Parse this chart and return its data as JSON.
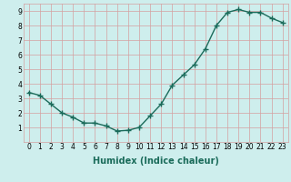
{
  "x": [
    0,
    1,
    2,
    3,
    4,
    5,
    6,
    7,
    8,
    9,
    10,
    11,
    12,
    13,
    14,
    15,
    16,
    17,
    18,
    19,
    20,
    21,
    22,
    23
  ],
  "y": [
    3.4,
    3.2,
    2.6,
    2.0,
    1.7,
    1.3,
    1.3,
    1.1,
    0.75,
    0.8,
    1.0,
    1.8,
    2.6,
    3.9,
    4.6,
    5.3,
    6.4,
    8.0,
    8.9,
    9.1,
    8.9,
    8.9,
    8.5,
    8.2
  ],
  "line_color": "#1a6b5a",
  "marker": "+",
  "marker_size": 4.0,
  "line_width": 1.0,
  "xlabel": "Humidex (Indice chaleur)",
  "ylabel": "",
  "xlim": [
    -0.5,
    23.5
  ],
  "ylim": [
    0,
    9.5
  ],
  "yticks": [
    1,
    2,
    3,
    4,
    5,
    6,
    7,
    8,
    9
  ],
  "xticks": [
    0,
    1,
    2,
    3,
    4,
    5,
    6,
    7,
    8,
    9,
    10,
    11,
    12,
    13,
    14,
    15,
    16,
    17,
    18,
    19,
    20,
    21,
    22,
    23
  ],
  "bg_color": "#ceeeed",
  "grid_color": "#d4a0a0",
  "tick_fontsize": 5.5,
  "xlabel_fontsize": 7.0,
  "marker_color": "#1a6b5a"
}
